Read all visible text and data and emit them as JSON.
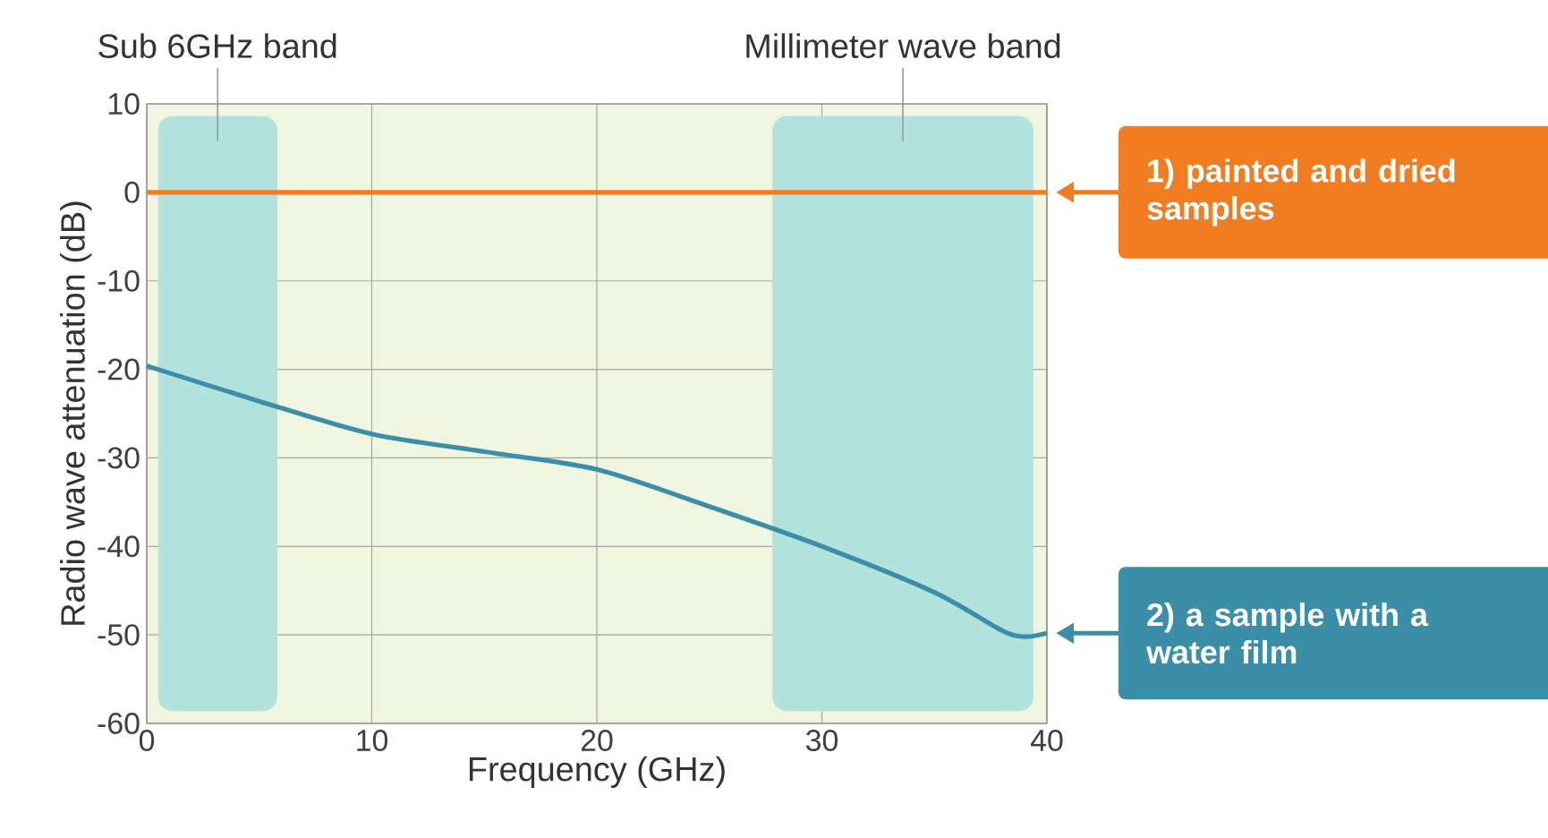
{
  "chart_data": {
    "type": "line",
    "xlabel": "Frequency (GHz)",
    "ylabel": "Radio wave attenuation (dB)",
    "xlim": [
      0,
      40
    ],
    "ylim": [
      -60,
      10
    ],
    "xticks": [
      0,
      10,
      20,
      30,
      40
    ],
    "yticks": [
      -60,
      -50,
      -40,
      -30,
      -20,
      -10,
      0,
      10
    ],
    "grid": true,
    "legend": "right",
    "x": [
      0,
      5,
      10,
      15,
      20,
      25,
      30,
      35,
      38,
      39,
      40
    ],
    "series": [
      {
        "name": "1) painted and dried samples",
        "color": "#f07d22",
        "values": [
          0,
          0,
          0,
          0,
          0,
          0,
          0,
          0,
          0,
          0,
          0
        ]
      },
      {
        "name": "2) a sample with a water film",
        "color": "#3a8ea8",
        "values": [
          -19.6,
          -23.6,
          -27.3,
          -29.3,
          -31.3,
          -35.5,
          -40,
          -45.2,
          -49.5,
          -50.2,
          -49.8
        ]
      }
    ],
    "bands": [
      {
        "axis": "x",
        "from": 0.5,
        "to": 5.8,
        "label": "Sub 6GHz band",
        "color": "#b2e2dc"
      },
      {
        "axis": "x",
        "from": 27.8,
        "to": 39.4,
        "label": "Millimeter wave band",
        "color": "#b2e2dc"
      }
    ]
  }
}
